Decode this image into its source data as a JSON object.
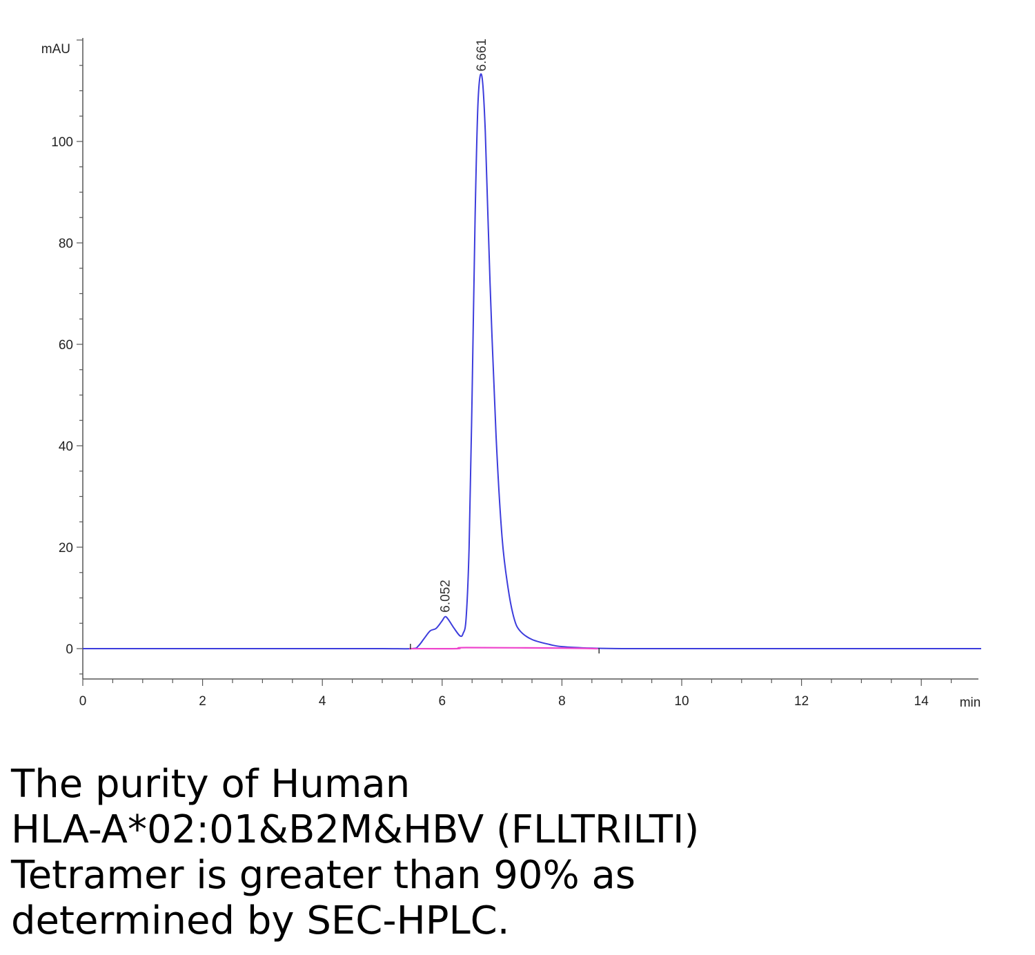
{
  "chart_data": {
    "type": "line",
    "title": "",
    "ylabel": "mAU",
    "xlabel": "min",
    "xlim": [
      0,
      15
    ],
    "ylim": [
      -6,
      120
    ],
    "x_ticks": [
      "0",
      "2",
      "4",
      "6",
      "8",
      "10",
      "12",
      "14"
    ],
    "y_ticks": [
      "0",
      "20",
      "40",
      "60",
      "80",
      "100"
    ],
    "grid": false,
    "series": [
      {
        "color": "#3c3cdc",
        "x": [
          0,
          0.5,
          1,
          2,
          3,
          4,
          5,
          5.5,
          5.6,
          5.7,
          5.8,
          5.9,
          6.0,
          6.05,
          6.1,
          6.2,
          6.3,
          6.35,
          6.4,
          6.45,
          6.5,
          6.55,
          6.6,
          6.661,
          6.72,
          6.8,
          6.9,
          7.0,
          7.1,
          7.2,
          7.3,
          7.5,
          7.8,
          8.0,
          8.5,
          9,
          10,
          11,
          12,
          13,
          14,
          15
        ],
        "y": [
          0,
          0,
          0,
          0,
          0,
          0,
          0,
          0,
          0.5,
          2,
          3.5,
          4,
          5.5,
          6.3,
          5.8,
          4,
          2.5,
          3,
          6,
          20,
          50,
          85,
          108,
          113,
          102,
          72,
          42,
          22,
          12,
          6,
          3.5,
          1.8,
          0.8,
          0.4,
          0.1,
          0,
          0,
          0,
          0,
          0,
          0,
          0
        ]
      },
      {
        "color": "#ee44cc",
        "x": [
          5.45,
          6.25,
          6.4,
          8.0,
          8.6
        ],
        "y": [
          0,
          0,
          0.2,
          0.1,
          0
        ]
      }
    ],
    "annotations": [
      {
        "text": "6.052",
        "x": 6.052,
        "y": 6.3
      },
      {
        "text": "6.661",
        "x": 6.661,
        "y": 113
      }
    ]
  },
  "caption": {
    "lines": [
      "The purity of Human",
      "HLA-A*02:01&B2M&HBV (FLLTRILTI)",
      "Tetramer is greater than 90% as",
      "determined by SEC-HPLC."
    ]
  }
}
